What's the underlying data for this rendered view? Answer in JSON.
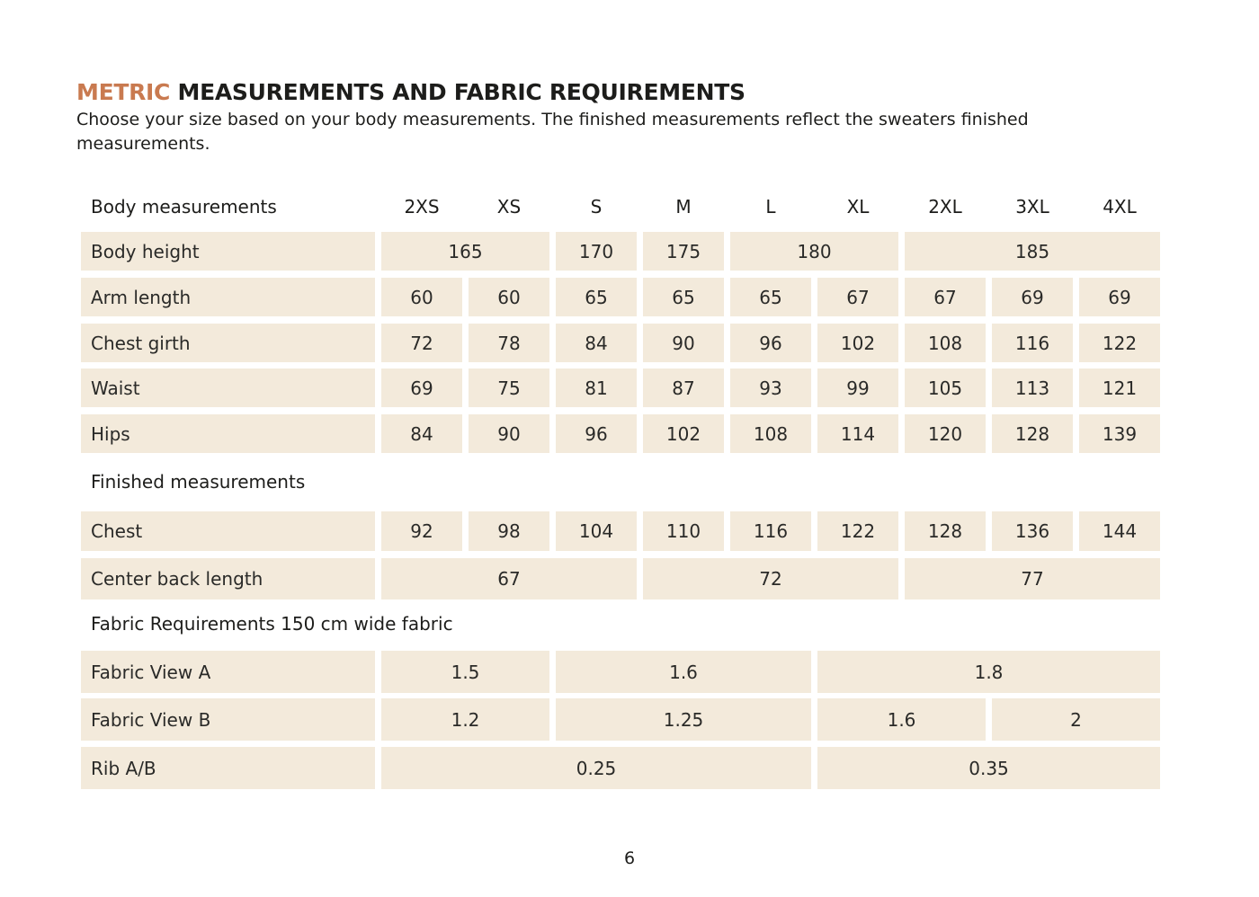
{
  "heading": {
    "accent": "METRIC",
    "rest": " MEASUREMENTS AND FABRIC REQUIREMENTS"
  },
  "intro": "Choose your size based on your body measurements. The finished measurements reflect the sweaters finished measurements.",
  "header": {
    "label": "Body measurements",
    "sizes": [
      "2XS",
      "XS",
      "S",
      "M",
      "L",
      "XL",
      "2XL",
      "3XL",
      "4XL"
    ]
  },
  "body_rows": [
    {
      "label": "Body height",
      "cells": [
        {
          "v": "165",
          "span": 2
        },
        {
          "v": "170",
          "span": 1
        },
        {
          "v": "175",
          "span": 1
        },
        {
          "v": "180",
          "span": 2
        },
        {
          "v": "185",
          "span": 3
        }
      ]
    },
    {
      "label": "Arm length",
      "cells": [
        {
          "v": "60",
          "span": 1
        },
        {
          "v": "60",
          "span": 1
        },
        {
          "v": "65",
          "span": 1
        },
        {
          "v": "65",
          "span": 1
        },
        {
          "v": "65",
          "span": 1
        },
        {
          "v": "67",
          "span": 1
        },
        {
          "v": "67",
          "span": 1
        },
        {
          "v": "69",
          "span": 1
        },
        {
          "v": "69",
          "span": 1
        }
      ]
    },
    {
      "label": "Chest girth",
      "cells": [
        {
          "v": "72",
          "span": 1
        },
        {
          "v": "78",
          "span": 1
        },
        {
          "v": "84",
          "span": 1
        },
        {
          "v": "90",
          "span": 1
        },
        {
          "v": "96",
          "span": 1
        },
        {
          "v": "102",
          "span": 1
        },
        {
          "v": "108",
          "span": 1
        },
        {
          "v": "116",
          "span": 1
        },
        {
          "v": "122",
          "span": 1
        }
      ]
    },
    {
      "label": "Waist",
      "cells": [
        {
          "v": "69",
          "span": 1
        },
        {
          "v": "75",
          "span": 1
        },
        {
          "v": "81",
          "span": 1
        },
        {
          "v": "87",
          "span": 1
        },
        {
          "v": "93",
          "span": 1
        },
        {
          "v": "99",
          "span": 1
        },
        {
          "v": "105",
          "span": 1
        },
        {
          "v": "113",
          "span": 1
        },
        {
          "v": "121",
          "span": 1
        }
      ]
    },
    {
      "label": "Hips",
      "cells": [
        {
          "v": "84",
          "span": 1
        },
        {
          "v": "90",
          "span": 1
        },
        {
          "v": "96",
          "span": 1
        },
        {
          "v": "102",
          "span": 1
        },
        {
          "v": "108",
          "span": 1
        },
        {
          "v": "114",
          "span": 1
        },
        {
          "v": "120",
          "span": 1
        },
        {
          "v": "128",
          "span": 1
        },
        {
          "v": "139",
          "span": 1
        }
      ]
    }
  ],
  "finished_title": "Finished measurements",
  "finished_rows": [
    {
      "label": "Chest",
      "cells": [
        {
          "v": "92",
          "span": 1
        },
        {
          "v": "98",
          "span": 1
        },
        {
          "v": "104",
          "span": 1
        },
        {
          "v": "110",
          "span": 1
        },
        {
          "v": "116",
          "span": 1
        },
        {
          "v": "122",
          "span": 1
        },
        {
          "v": "128",
          "span": 1
        },
        {
          "v": "136",
          "span": 1
        },
        {
          "v": "144",
          "span": 1
        }
      ]
    },
    {
      "label": "Center back length",
      "cells": [
        {
          "v": "67",
          "span": 3
        },
        {
          "v": "72",
          "span": 3
        },
        {
          "v": "77",
          "span": 3
        }
      ]
    }
  ],
  "fabric_title": "Fabric Requirements 150 cm wide fabric",
  "fabric_rows": [
    {
      "label": "Fabric View A",
      "cells": [
        {
          "v": "1.5",
          "span": 2
        },
        {
          "v": "1.6",
          "span": 3
        },
        {
          "v": "1.8",
          "span": 4
        }
      ]
    },
    {
      "label": "Fabric View B",
      "cells": [
        {
          "v": "1.2",
          "span": 2
        },
        {
          "v": "1.25",
          "span": 3
        },
        {
          "v": "1.6",
          "span": 2
        },
        {
          "v": "2",
          "span": 2
        }
      ]
    },
    {
      "label": "Rib A/B",
      "cells": [
        {
          "v": "0.25",
          "span": 5
        },
        {
          "v": "0.35",
          "span": 4
        }
      ]
    }
  ],
  "page_number": "6",
  "colors": {
    "accent": "#c97a50",
    "cell_bg": "#f3eadb"
  }
}
